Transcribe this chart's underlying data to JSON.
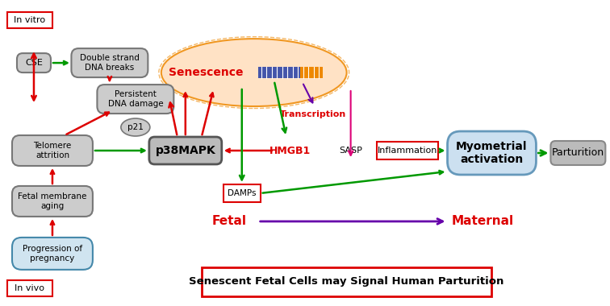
{
  "title": "Senescent Fetal Cells may Signal Human Parturition",
  "title_color": "#cc0000",
  "title_box_color": "#cc0000",
  "bg_color": "#ffffff",
  "labels": {
    "in_vivo": "In vivo",
    "in_vitro": "In vitro",
    "fetal": "Fetal",
    "maternal": "Maternal",
    "progression": "Progression of\npregnancy",
    "fetal_membrane": "Fetal membrane\naging",
    "telomere": "Telomere\nattrition",
    "p38MAPK": "p38MAPK",
    "p21": "p21",
    "persistent_dna": "Persistent\nDNA damage",
    "cse": "CSE",
    "double_strand": "Double strand\nDNA breaks",
    "damps": "DAMPs",
    "hmgb1": "HMGB1",
    "sasp": "SASP",
    "inflammation": "Inflammation",
    "transcription": "Transcription",
    "senescence": "Senescence",
    "myometrial": "Myometrial\nactivation",
    "parturition": "Parturition"
  },
  "colors": {
    "red_arrow": "#dd0000",
    "green_arrow": "#009900",
    "purple_arrow": "#6600aa",
    "pink_arrow": "#dd0077",
    "gray_box": "#aaaaaa",
    "light_blue_box": "#aaccee",
    "red_box_border": "#cc0000",
    "senescence_fill": "#ffddbb",
    "senescence_border": "#ee8800",
    "dna_blue": "#4444aa",
    "dna_orange": "#ee8800"
  }
}
